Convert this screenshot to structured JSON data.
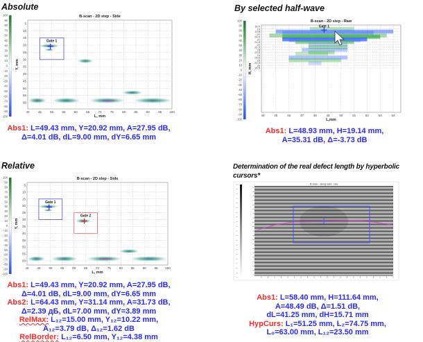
{
  "panels": {
    "absolute": {
      "title": "Absolute",
      "chart_title": "B-scan - 2D step - Side",
      "x_label": "L, mm",
      "y_label": "Y, mm",
      "x_ticks": [
        "40",
        "45",
        "50",
        "55",
        "60",
        "65",
        "70",
        "75",
        "80",
        "85",
        "90",
        "95",
        "100"
      ],
      "y_ticks": [
        "5",
        "10",
        "15",
        "20",
        "25",
        "30",
        "35",
        "40",
        "45",
        "50",
        "55",
        "60"
      ],
      "gate1_label": "Gate 1",
      "results": [
        {
          "label": "Abs1:",
          "text": " L=49.43 mm, Y=20.92 mm, A=27.95 dB,"
        },
        {
          "label": "",
          "text": "Δ=4.01 dB, dL=9.00 mm, dY=6.65 mm"
        }
      ]
    },
    "half_wave": {
      "title": "By selected half-wave",
      "chart_title": "B-scan - 2D step - Raw",
      "x_label": "L,mm",
      "y_label": "H, mm",
      "x_ticks": [
        "44",
        "45",
        "46",
        "47",
        "48",
        "49",
        "50",
        "51",
        "52",
        "53",
        "54"
      ],
      "y_ticks": [
        "18.5",
        "19",
        "19.5",
        "20",
        "20.5",
        "21",
        "21.5",
        "22",
        "22.5",
        "23",
        "23.5",
        "24",
        "24.5",
        "25",
        "25.5",
        "26",
        "26.5"
      ],
      "gate1_label": "Gate 1",
      "results": [
        {
          "label": "Abs1:",
          "text": " L=48.93 mm, H=19.14 mm,"
        },
        {
          "label": "",
          "text": "A=35.31 dB, Δ=-3.73 dB"
        }
      ]
    },
    "relative": {
      "title": "Relative",
      "chart_title": "B-scan - 2D step - Side",
      "x_label": "L, mm",
      "y_label": "Y, mm",
      "x_ticks": [
        "40",
        "45",
        "50",
        "55",
        "60",
        "65",
        "70",
        "75",
        "80",
        "85",
        "90",
        "95",
        "100"
      ],
      "y_ticks": [
        "5",
        "10",
        "15",
        "20",
        "25",
        "30",
        "35",
        "40",
        "45",
        "50",
        "55",
        "60"
      ],
      "gate1_label": "Gate 1",
      "gate2_label": "Gate 2",
      "results": [
        {
          "label": "Abs1:",
          "text": " L=49.43 mm, Y=20.92 mm, A=27.95 dB,"
        },
        {
          "label": "",
          "text": "Δ=4.01 dB, dL=9.00 mm, dY=6.65 mm"
        },
        {
          "label": "Abs2:",
          "text": " L=64.43 mm, Y=31.14 mm, A=31.73 dB,"
        },
        {
          "label": "",
          "text": "Δ=2.39 дБ, dL=7.00 mm, dY=3.89 mm"
        },
        {
          "label": "RelMax:",
          "text": "  L₁₂=15.00 mm, Y₁₂=10.22 mm,"
        },
        {
          "label": "",
          "text": "A₁₂=3.79 dB, Δ₁₂=1.62 dB"
        },
        {
          "label": "RelBorder:",
          "text": "  L₁₂=6.50 mm, Y₁₂=4.38 mm"
        }
      ]
    },
    "hyperbolic": {
      "title_line1": "Determination of the real defect length by hyperbolic",
      "title_line2": "cursors*",
      "chart_title": "B-Scan - along weld - raw",
      "results": [
        {
          "label": "Abs1:",
          "text": " L=58.40 mm, H=111.64 mm,"
        },
        {
          "label": "",
          "text": "A=48.49 dB, Δ=1.51 dB,"
        },
        {
          "label": "",
          "text": "dL=41.25 mm, dH=15.71 mm"
        },
        {
          "label": "HypCurs:",
          "text": " L₁=51.25 mm, L₂=74.75 mm,"
        },
        {
          "label": "",
          "text": "L₀=63.00 mm, L₁₂=23.50 mm"
        }
      ]
    }
  },
  "colorbar_ticks": [
    "100",
    "90",
    "80",
    "70",
    "60",
    "50",
    "40",
    "30",
    "20",
    "10",
    "0",
    "-10",
    "-20",
    "-30",
    "-40",
    "-50",
    "-60",
    "-70",
    "-80",
    "-90",
    "-100"
  ],
  "colors": {
    "result_value": "#2a2aff",
    "result_label": "#ff2a2a",
    "gate1": "#4a4aff",
    "gate2": "#ff6060",
    "hyperbola": "#d050d0"
  }
}
